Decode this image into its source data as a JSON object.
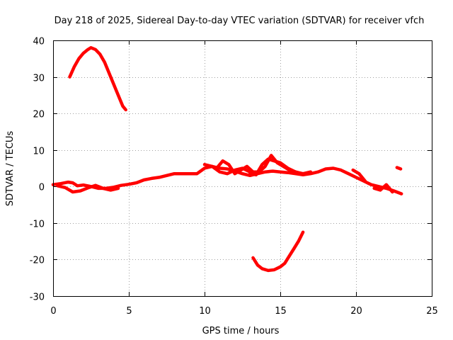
{
  "chart_data": {
    "type": "line",
    "title": "Day 218 of 2025, Sidereal Day-to-day VTEC variation (SDTVAR) for receiver vfch",
    "xlabel": "GPS time / hours",
    "ylabel": "SDTVAR / TECUs",
    "xlim": [
      0,
      25
    ],
    "ylim": [
      -30,
      40
    ],
    "xticks": [
      0,
      5,
      10,
      15,
      20,
      25
    ],
    "yticks": [
      -30,
      -20,
      -10,
      0,
      10,
      20,
      30,
      40
    ],
    "xtick_labels": [
      "0",
      "5",
      "10",
      "15",
      "20",
      "25"
    ],
    "ytick_labels": [
      "-30",
      "-20",
      "-10",
      "0",
      "10",
      "20",
      "30",
      "40"
    ],
    "grid": true,
    "color": "#ff0000",
    "series": [
      {
        "name": "arc-high-early",
        "x": [
          1.1,
          1.4,
          1.7,
          2.0,
          2.3,
          2.5,
          2.8,
          3.1,
          3.4,
          3.7,
          4.0,
          4.3,
          4.6,
          4.8
        ],
        "y": [
          30,
          32.8,
          35,
          36.5,
          37.5,
          38,
          37.5,
          36.2,
          34,
          31,
          28,
          25,
          22,
          21
        ]
      },
      {
        "name": "main-trace-a",
        "x": [
          0,
          0.5,
          1.0,
          1.3,
          1.6,
          2.0,
          2.5,
          3.0,
          3.5,
          4.0,
          4.5,
          5.0,
          5.5,
          6.0,
          6.5,
          7.0,
          7.5,
          8.0,
          8.5,
          9.0,
          9.5,
          10.0,
          10.5,
          11.0,
          11.5,
          12.0,
          12.5,
          13.0,
          13.5,
          14.0,
          14.5,
          15.0,
          15.5,
          16.0,
          16.5,
          17.0,
          17.5,
          18.0,
          18.5,
          19.0,
          19.5,
          20.0,
          20.5,
          21.0,
          21.5,
          22.0,
          22.5,
          23.0
        ],
        "y": [
          0.5,
          0.8,
          1.2,
          1.0,
          0.2,
          0.4,
          0,
          -0.5,
          -0.5,
          -0.2,
          0.3,
          0.6,
          1,
          1.8,
          2.2,
          2.5,
          3,
          3.5,
          3.5,
          3.5,
          3.5,
          5,
          5.5,
          5,
          4.8,
          4.2,
          3.5,
          3,
          3.5,
          4,
          4.2,
          4,
          3.8,
          3.5,
          3.2,
          3.5,
          4,
          4.8,
          5,
          4.5,
          3.5,
          2.5,
          1.5,
          0.5,
          0,
          -0.5,
          -1.2,
          -2
        ]
      },
      {
        "name": "main-trace-b",
        "x": [
          0.3,
          0.8,
          1.3,
          1.8,
          2.3,
          2.8,
          3.3,
          3.8,
          4.3
        ],
        "y": [
          0.2,
          -0.3,
          -1.5,
          -1.2,
          -0.4,
          0.3,
          -0.5,
          -1,
          -0.5
        ]
      },
      {
        "name": "main-trace-c",
        "x": [
          10.0,
          10.5,
          11.0,
          11.5,
          12.0,
          12.5,
          13.0
        ],
        "y": [
          6,
          5.5,
          4,
          3.5,
          4.5,
          5,
          4
        ]
      },
      {
        "name": "main-trace-d",
        "x": [
          10.8,
          11.2,
          11.6,
          12.0,
          12.4,
          12.8,
          13.2,
          13.6,
          14.0,
          14.4,
          14.8,
          15.2,
          15.6,
          16.0,
          16.4
        ],
        "y": [
          5,
          7,
          6,
          3.5,
          4.5,
          5.5,
          4,
          4,
          5.5,
          8.5,
          6.5,
          5.5,
          4.5,
          4,
          3.5
        ]
      },
      {
        "name": "main-trace-e",
        "x": [
          13.0,
          13.4,
          13.8,
          14.2,
          14.6,
          15.0,
          15.5,
          16.0,
          16.5,
          17.0
        ],
        "y": [
          3.5,
          3.2,
          6,
          7.5,
          7,
          6.5,
          5,
          4,
          3.5,
          4
        ]
      },
      {
        "name": "main-trace-f",
        "x": [
          19.8,
          20.2,
          20.6
        ],
        "y": [
          4.5,
          3.5,
          1.5
        ]
      },
      {
        "name": "main-trace-g",
        "x": [
          21.2,
          21.6,
          22.0,
          22.4
        ],
        "y": [
          -0.5,
          -1,
          0.5,
          -1.5
        ]
      },
      {
        "name": "arc-low",
        "x": [
          13.2,
          13.5,
          13.8,
          14.2,
          14.6,
          15.0,
          15.3,
          15.6,
          15.9,
          16.2,
          16.5
        ],
        "y": [
          -19.5,
          -21.5,
          -22.5,
          -23,
          -22.8,
          -22,
          -21,
          -19,
          -17,
          -15,
          -12.5
        ]
      },
      {
        "name": "fragment",
        "x": [
          22.7,
          22.95
        ],
        "y": [
          5.2,
          4.8
        ]
      }
    ]
  }
}
